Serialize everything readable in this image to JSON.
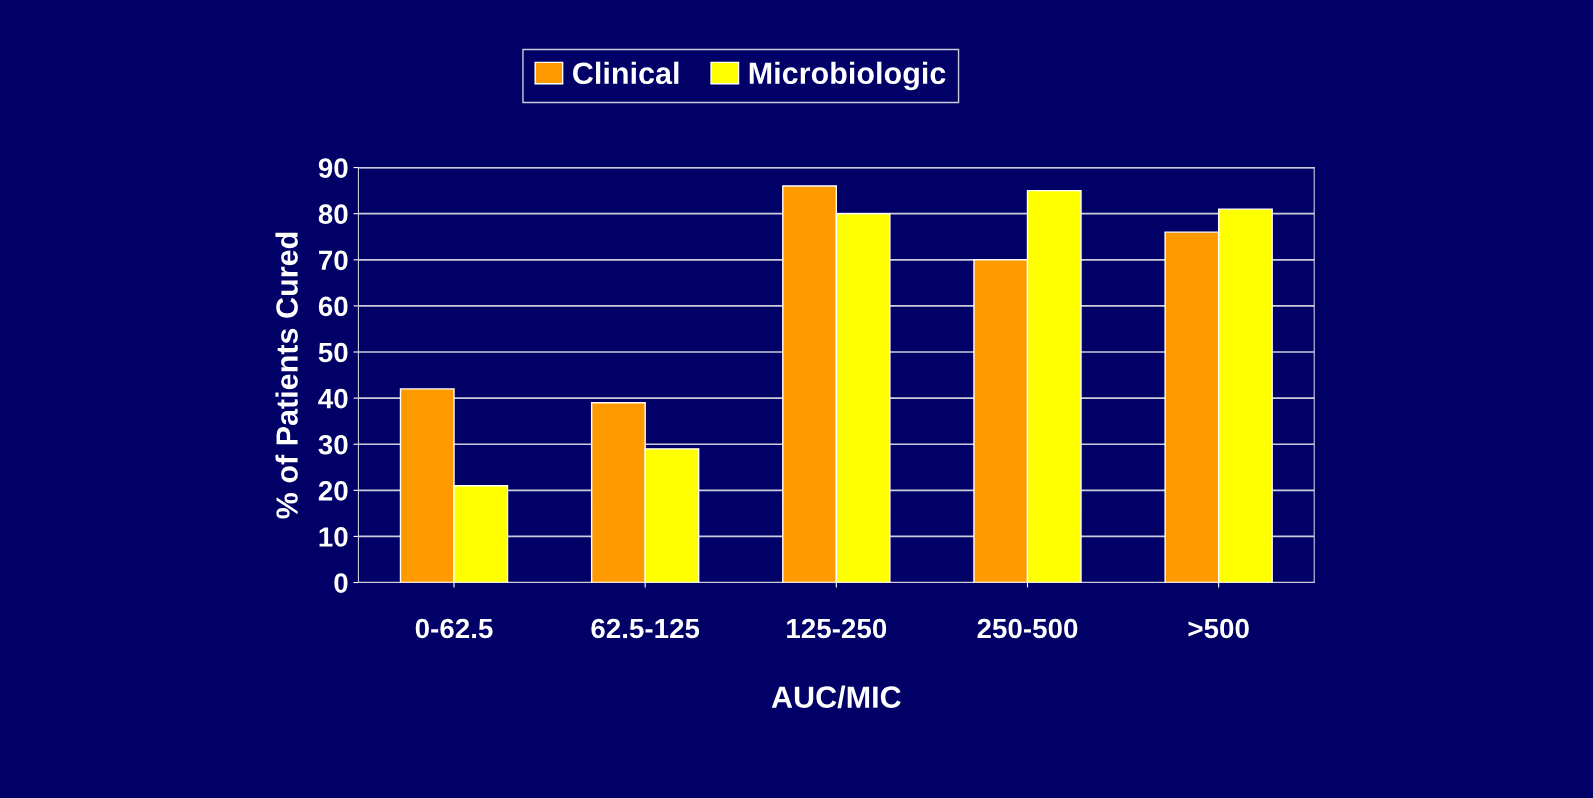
{
  "chart_data": {
    "type": "bar",
    "xlabel": "AUC/MIC",
    "ylabel": "% of Patients Cured",
    "categories": [
      "0-62.5",
      "62.5-125",
      "125-250",
      "250-500",
      ">500"
    ],
    "series": [
      {
        "name": "Clinical",
        "color": "#ff9900",
        "values": [
          42,
          39,
          86,
          70,
          76
        ]
      },
      {
        "name": "Microbiologic",
        "color": "#ffff00",
        "values": [
          21,
          29,
          80,
          85,
          81
        ]
      }
    ],
    "ylim": [
      0,
      90
    ],
    "yticks": [
      0,
      10,
      20,
      30,
      40,
      50,
      60,
      70,
      80,
      90
    ],
    "grid": "y",
    "legend": "top"
  }
}
